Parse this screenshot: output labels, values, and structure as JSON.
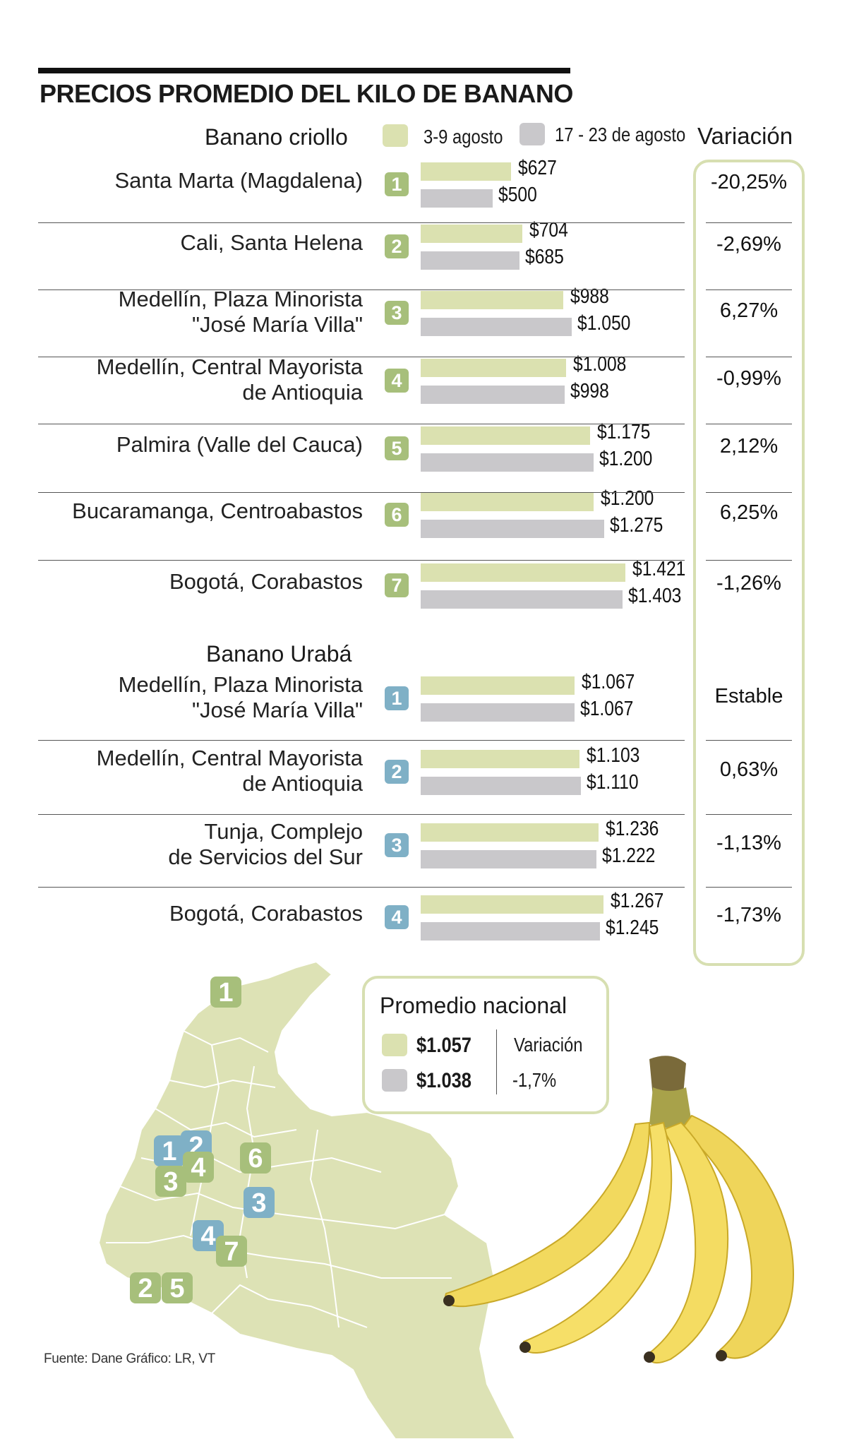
{
  "title": "PRECIOS PROMEDIO DEL KILO DE BANANO",
  "legend": {
    "period_1": "3-9 agosto",
    "period_2": "17 - 23 de agosto",
    "variation_header": "Variación",
    "color_period_1": "#dbe1b0",
    "color_period_2": "#c9c8cb"
  },
  "sections": {
    "criollo": {
      "title": "Banano criollo"
    },
    "uraba": {
      "title": "Banano Urabá"
    }
  },
  "chart_data": {
    "type": "bar",
    "orientation": "horizontal",
    "title": "PRECIOS PROMEDIO DEL KILO DE BANANO",
    "series_names": [
      "3-9 agosto",
      "17 - 23 de agosto"
    ],
    "groups": [
      {
        "name": "Banano criollo",
        "rows": [
          {
            "num": "1",
            "label": [
              "Santa Marta (Magdalena)"
            ],
            "p1": 627,
            "p2": 500,
            "p1_label": "$627",
            "p2_label": "$500",
            "variation": "-20,25%"
          },
          {
            "num": "2",
            "label": [
              "Cali, Santa Helena"
            ],
            "p1": 704,
            "p2": 685,
            "p1_label": "$704",
            "p2_label": "$685",
            "variation": "-2,69%"
          },
          {
            "num": "3",
            "label": [
              "Medellín, Plaza Minorista",
              "\"José María Villa\""
            ],
            "p1": 988,
            "p2": 1050,
            "p1_label": "$988",
            "p2_label": "$1.050",
            "variation": "6,27%"
          },
          {
            "num": "4",
            "label": [
              "Medellín, Central Mayorista",
              "de Antioquia"
            ],
            "p1": 1008,
            "p2": 998,
            "p1_label": "$1.008",
            "p2_label": "$998",
            "variation": "-0,99%"
          },
          {
            "num": "5",
            "label": [
              "Palmira (Valle del Cauca)"
            ],
            "p1": 1175,
            "p2": 1200,
            "p1_label": "$1.175",
            "p2_label": "$1.200",
            "variation": "2,12%"
          },
          {
            "num": "6",
            "label": [
              "Bucaramanga, Centroabastos"
            ],
            "p1": 1200,
            "p2": 1275,
            "p1_label": "$1.200",
            "p2_label": "$1.275",
            "variation": "6,25%"
          },
          {
            "num": "7",
            "label": [
              "Bogotá, Corabastos"
            ],
            "p1": 1421,
            "p2": 1403,
            "p1_label": "$1.421",
            "p2_label": "$1.403",
            "variation": "-1,26%"
          }
        ]
      },
      {
        "name": "Banano Urabá",
        "rows": [
          {
            "num": "1",
            "label": [
              "Medellín, Plaza Minorista",
              "\"José María Villa\""
            ],
            "p1": 1067,
            "p2": 1067,
            "p1_label": "$1.067",
            "p2_label": "$1.067",
            "variation": "Estable"
          },
          {
            "num": "2",
            "label": [
              "Medellín, Central Mayorista",
              "de Antioquia"
            ],
            "p1": 1103,
            "p2": 1110,
            "p1_label": "$1.103",
            "p2_label": "$1.110",
            "variation": "0,63%"
          },
          {
            "num": "3",
            "label": [
              "Tunja, Complejo",
              "de Servicios del Sur"
            ],
            "p1": 1236,
            "p2": 1222,
            "p1_label": "$1.236",
            "p2_label": "$1.222",
            "variation": "-1,13%"
          },
          {
            "num": "4",
            "label": [
              "Bogotá, Corabastos"
            ],
            "p1": 1267,
            "p2": 1245,
            "p1_label": "$1.267",
            "p2_label": "$1.245",
            "variation": "-1,73%"
          }
        ]
      }
    ]
  },
  "national_average": {
    "title": "Promedio nacional",
    "value_1": "$1.057",
    "value_2": "$1.038",
    "variation_label": "Variación",
    "variation_value": "-1,7%"
  },
  "map_markers": [
    {
      "num": "1",
      "kind": "criollo"
    },
    {
      "num": "2",
      "kind": "uraba"
    },
    {
      "num": "1",
      "kind": "uraba"
    },
    {
      "num": "4",
      "kind": "criollo"
    },
    {
      "num": "3",
      "kind": "criollo"
    },
    {
      "num": "6",
      "kind": "criollo"
    },
    {
      "num": "3",
      "kind": "uraba"
    },
    {
      "num": "4",
      "kind": "uraba"
    },
    {
      "num": "7",
      "kind": "criollo"
    },
    {
      "num": "2",
      "kind": "criollo"
    },
    {
      "num": "5",
      "kind": "criollo"
    }
  ],
  "colors": {
    "criollo": "#a7bf7b",
    "uraba": "#7fb0c6",
    "map_fill": "#dde2b5",
    "frame": "#d7dfb1"
  },
  "source": "Fuente: Dane  Gráfico: LR, VT"
}
